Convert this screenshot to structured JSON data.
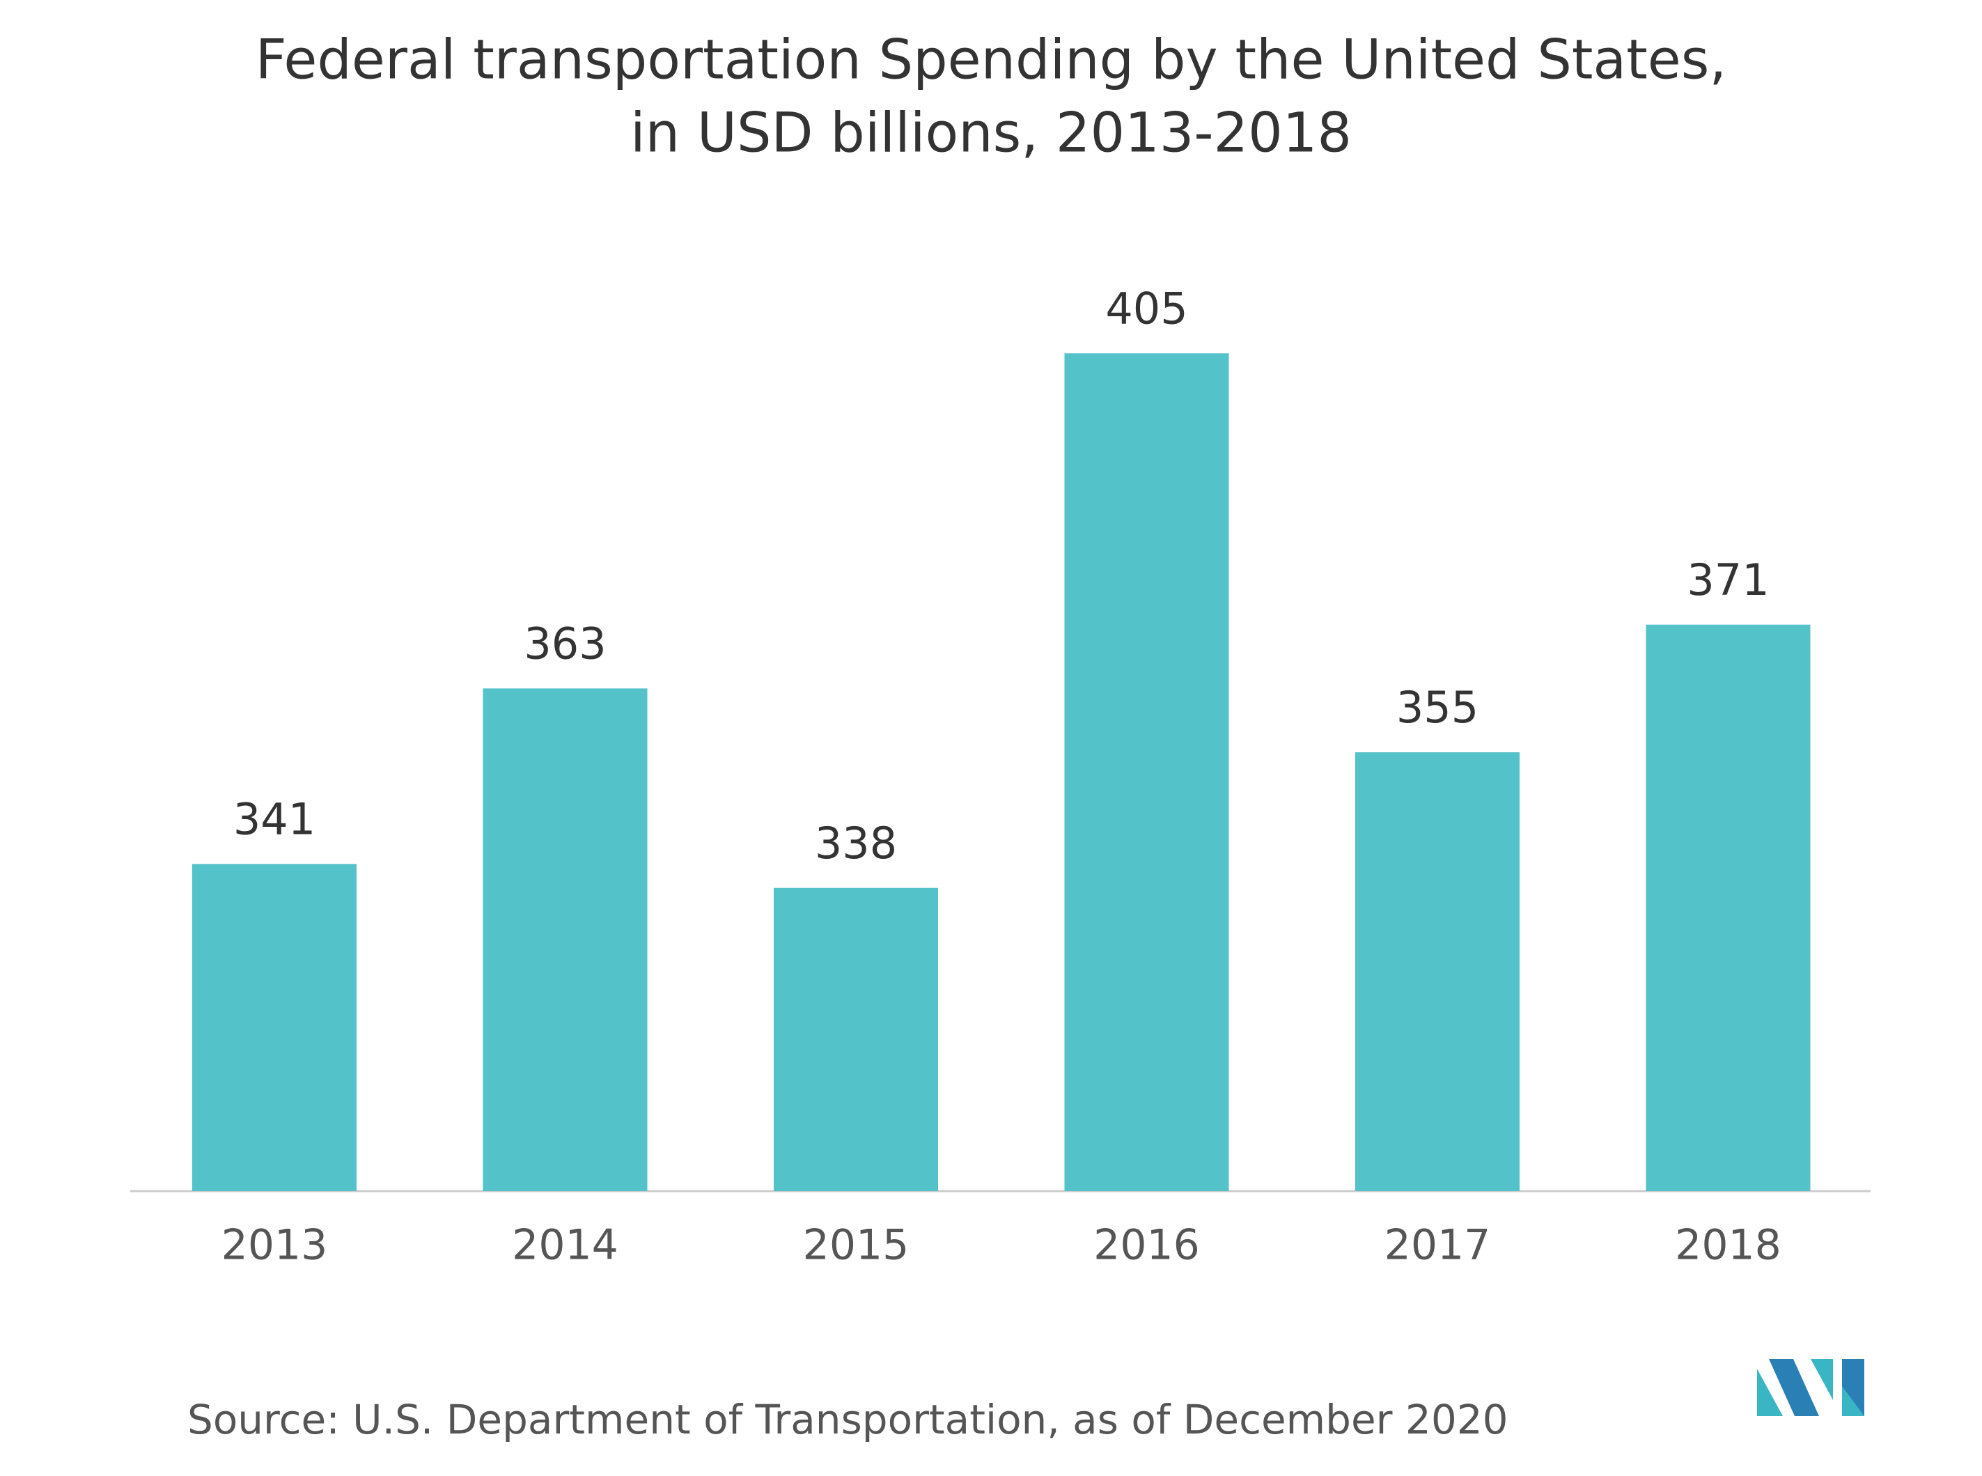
{
  "chart_data": {
    "type": "bar",
    "title": "Federal transportation Spending by the United States,",
    "subtitle": "in USD billions, 2013-2018",
    "categories": [
      "2013",
      "2014",
      "2015",
      "2016",
      "2017",
      "2018"
    ],
    "values": [
      341,
      363,
      338,
      405,
      355,
      371
    ],
    "color": "#53c2c9",
    "ylim": [
      300,
      410
    ],
    "source": "Source: U.S. Department of Transportation, as of December 2020"
  }
}
